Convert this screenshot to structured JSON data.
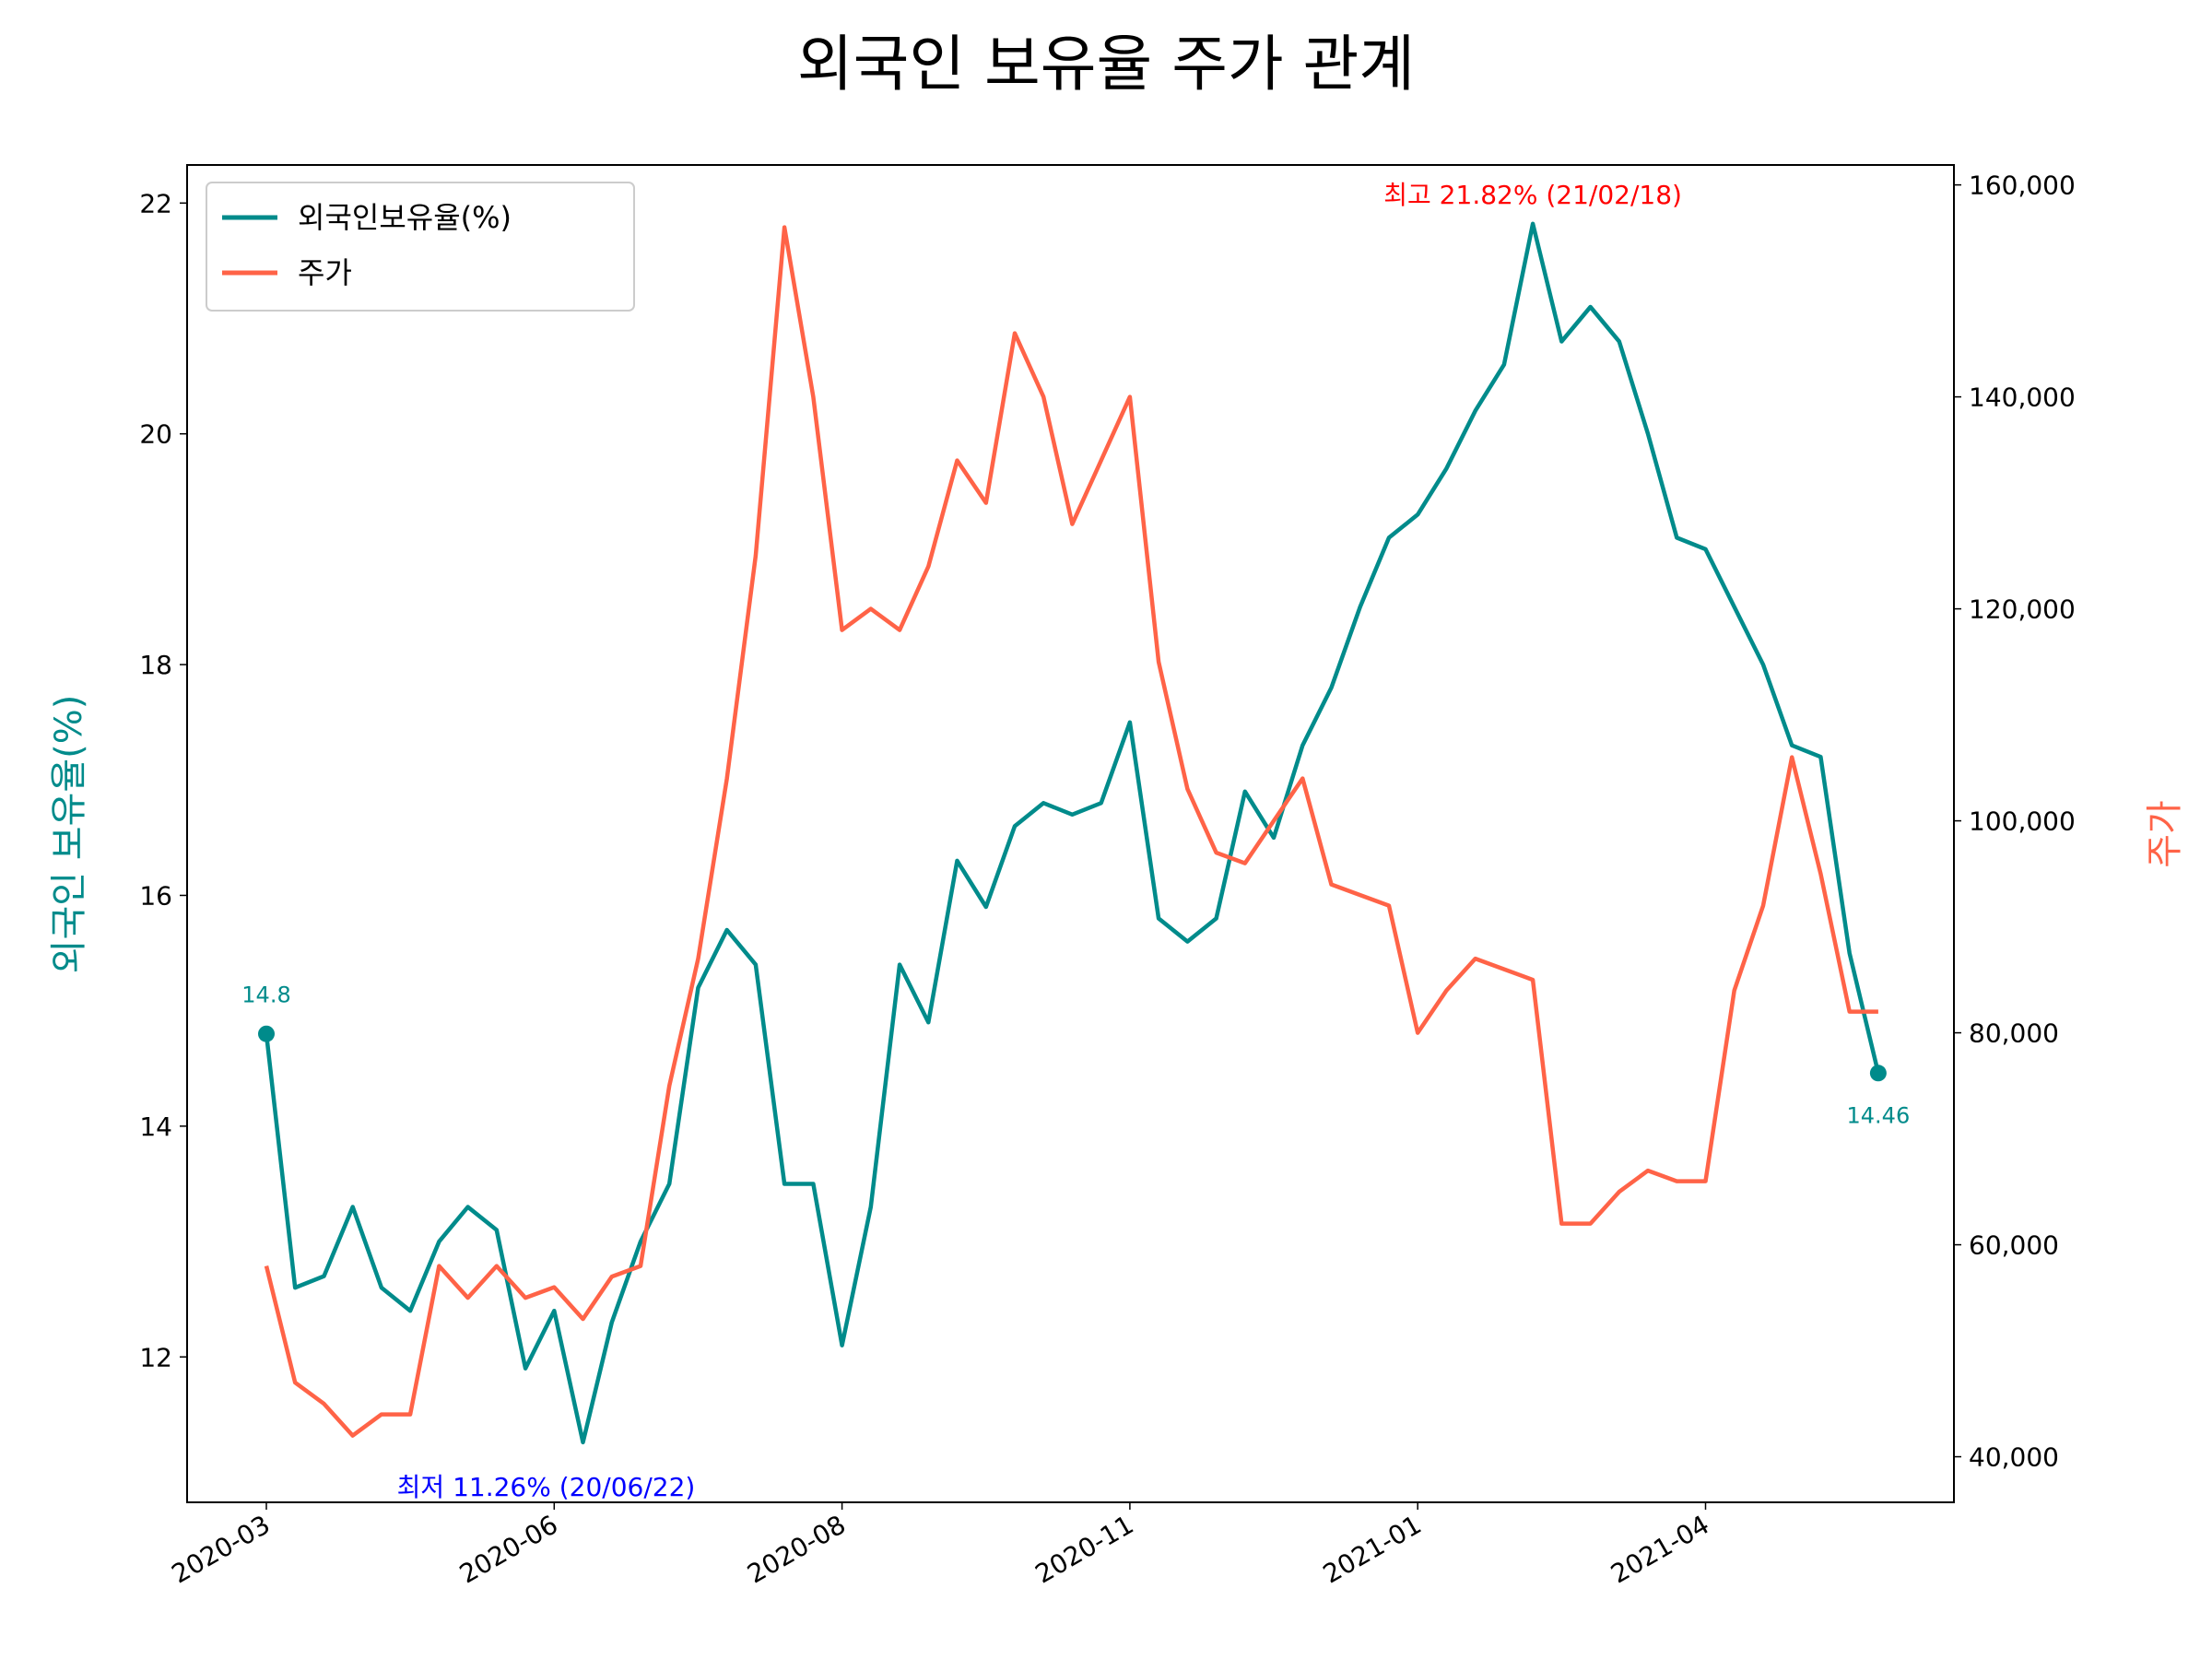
{
  "chart_data": {
    "type": "line",
    "title": "외국인 보유율 주가 관계",
    "y_label": "외국인 보유율(%)",
    "y2_label": "주가",
    "categories": [
      "2020-03",
      null,
      null,
      null,
      null,
      null,
      null,
      null,
      null,
      null,
      "2020-06",
      null,
      null,
      null,
      null,
      null,
      null,
      null,
      null,
      null,
      "2020-08",
      null,
      null,
      null,
      null,
      null,
      null,
      null,
      null,
      null,
      "2020-11",
      null,
      null,
      null,
      null,
      null,
      null,
      null,
      null,
      null,
      "2021-01",
      null,
      null,
      null,
      null,
      null,
      null,
      null,
      null,
      null,
      "2021-04",
      null,
      null,
      null,
      null,
      null,
      null
    ],
    "series": [
      {
        "name": "외국인보유율(%)",
        "color": "#008b8b",
        "values": [
          14.8,
          12.6,
          12.7,
          13.3,
          12.6,
          12.4,
          13.0,
          13.3,
          13.1,
          11.9,
          12.4,
          11.26,
          12.3,
          13.0,
          13.5,
          15.2,
          15.7,
          15.4,
          13.5,
          13.5,
          12.1,
          13.3,
          15.4,
          14.9,
          16.3,
          15.9,
          16.6,
          16.8,
          16.7,
          16.8,
          17.5,
          15.8,
          15.6,
          15.8,
          16.9,
          16.5,
          17.3,
          17.8,
          18.5,
          19.1,
          19.3,
          19.7,
          20.2,
          20.6,
          21.82,
          20.8,
          21.1,
          20.8,
          20.0,
          19.1,
          19.0,
          18.5,
          18.0,
          17.3,
          17.2,
          15.5,
          14.46
        ]
      },
      {
        "name": "주가",
        "color": "#ff6347",
        "axis": "y2",
        "values": [
          58000,
          47000,
          45000,
          42000,
          44000,
          44000,
          58000,
          55000,
          58000,
          55000,
          56000,
          53000,
          57000,
          58000,
          75000,
          87000,
          104000,
          125000,
          156000,
          140000,
          118000,
          120000,
          118000,
          124000,
          134000,
          130000,
          146000,
          140000,
          128000,
          134000,
          140000,
          115000,
          103000,
          97000,
          96000,
          100000,
          104000,
          94000,
          93000,
          92000,
          80000,
          84000,
          87000,
          86000,
          85000,
          62000,
          62000,
          65000,
          67000,
          66000,
          66000,
          84000,
          92000,
          106000,
          95000,
          82000,
          82000
        ]
      }
    ],
    "ylim": [
      10.74,
      22.33
    ],
    "yticks": [
      12,
      14,
      16,
      18,
      20,
      22
    ],
    "y2lim": [
      35700,
      161880
    ],
    "y2ticks": [
      {
        "value": 40000,
        "label": "40,000"
      },
      {
        "value": 60000,
        "label": "60,000"
      },
      {
        "value": 80000,
        "label": "80,000"
      },
      {
        "value": 100000,
        "label": "100,000"
      },
      {
        "value": 120000,
        "label": "120,000"
      },
      {
        "value": 140000,
        "label": "140,000"
      },
      {
        "value": 160000,
        "label": "160,000"
      }
    ],
    "annotations": [
      {
        "text": "최고 21.82% (21/02/18)",
        "color": "#ff0000"
      },
      {
        "text": "최저 11.26% (20/06/22)",
        "color": "#0000ff"
      }
    ],
    "legend": "upper left"
  }
}
